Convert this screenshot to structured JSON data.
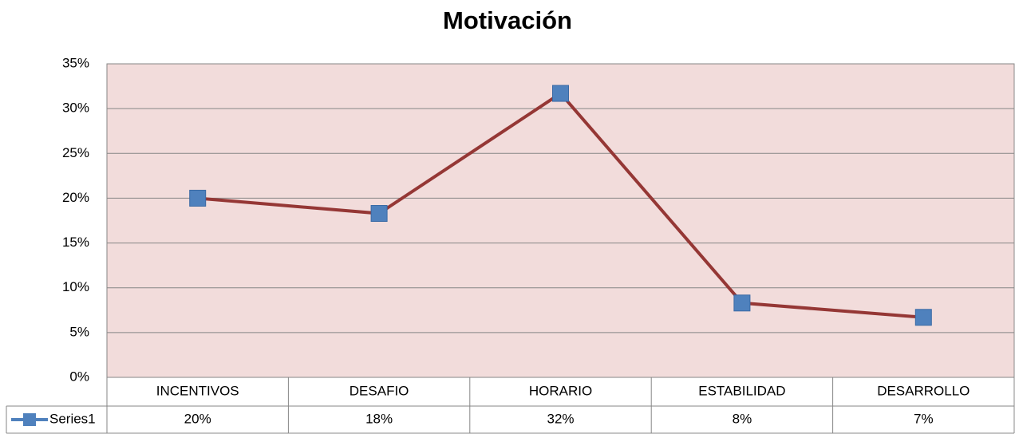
{
  "chart_data": {
    "type": "line",
    "title": "Motivación",
    "categories": [
      "INCENTIVOS",
      "DESAFIO",
      "HORARIO",
      "ESTABILIDAD",
      "DESARROLLO"
    ],
    "series": [
      {
        "name": "Series1",
        "line_color": "#953735",
        "color": "#4f81bd",
        "values": [
          20,
          18.3,
          31.7,
          8.3,
          6.7
        ],
        "value_labels": [
          "20%",
          "18%",
          "32%",
          "8%",
          "7%"
        ]
      }
    ],
    "ylim": [
      0,
      35
    ],
    "yticks": [
      {
        "value": 0,
        "label": "0%"
      },
      {
        "value": 5,
        "label": "5%"
      },
      {
        "value": 10,
        "label": "10%"
      },
      {
        "value": 15,
        "label": "15%"
      },
      {
        "value": 20,
        "label": "20%"
      },
      {
        "value": 25,
        "label": "25%"
      },
      {
        "value": 30,
        "label": "30%"
      },
      {
        "value": 35,
        "label": "35%"
      }
    ],
    "grid": true,
    "plot_background": "#f2dcdb"
  }
}
